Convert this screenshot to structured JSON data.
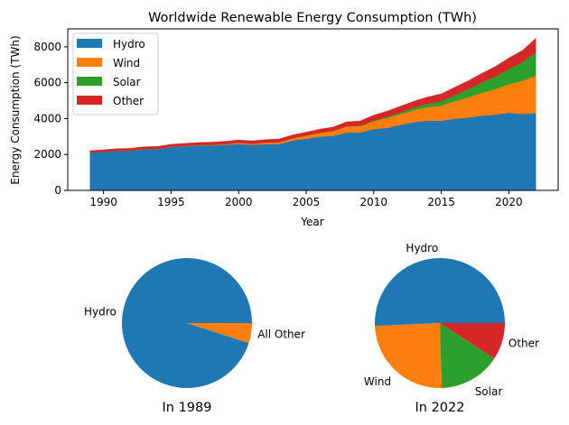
{
  "chart_data": [
    {
      "type": "area",
      "stacked": true,
      "title": "Worldwide Renewable Energy Consumption (TWh)",
      "xlabel": "Year",
      "ylabel": "Energy Consumption (TWh)",
      "xlim": [
        1987.35,
        2023.65
      ],
      "ylim": [
        0,
        9000
      ],
      "xticks": [
        1990,
        1995,
        2000,
        2005,
        2010,
        2015,
        2020
      ],
      "yticks": [
        0,
        2000,
        4000,
        6000,
        8000
      ],
      "legend_placement": "upper-left",
      "x": [
        1989,
        1990,
        1991,
        1992,
        1993,
        1994,
        1995,
        1996,
        1997,
        1998,
        1999,
        2000,
        2001,
        2002,
        2003,
        2004,
        2005,
        2006,
        2007,
        2008,
        2009,
        2010,
        2011,
        2012,
        2013,
        2014,
        2015,
        2016,
        2017,
        2018,
        2019,
        2020,
        2021,
        2022
      ],
      "series": [
        {
          "name": "Hydro",
          "color": "#1f77b4",
          "values": [
            2100,
            2150,
            2200,
            2210,
            2300,
            2310,
            2420,
            2460,
            2500,
            2510,
            2540,
            2590,
            2540,
            2580,
            2580,
            2780,
            2880,
            2990,
            3040,
            3220,
            3230,
            3420,
            3480,
            3660,
            3800,
            3880,
            3880,
            3990,
            4050,
            4170,
            4220,
            4330,
            4260,
            4300
          ]
        },
        {
          "name": "Wind",
          "color": "#ff7f0e",
          "values": [
            4,
            4,
            8,
            8,
            8,
            10,
            15,
            20,
            25,
            30,
            40,
            60,
            60,
            80,
            110,
            130,
            170,
            220,
            270,
            340,
            360,
            440,
            560,
            600,
            680,
            760,
            830,
            990,
            1140,
            1270,
            1420,
            1590,
            1850,
            2100
          ]
        },
        {
          "name": "Solar",
          "color": "#2ca02c",
          "values": [
            0,
            0,
            0,
            0,
            0,
            0,
            0,
            0,
            0,
            0,
            0,
            1,
            1,
            2,
            2,
            3,
            4,
            5,
            8,
            12,
            20,
            32,
            62,
            100,
            140,
            190,
            250,
            330,
            450,
            580,
            700,
            840,
            1030,
            1300
          ]
        },
        {
          "name": "Other",
          "color": "#d62728",
          "values": [
            110,
            115,
            120,
            125,
            125,
            130,
            135,
            140,
            145,
            150,
            155,
            160,
            165,
            170,
            175,
            180,
            190,
            200,
            210,
            250,
            260,
            300,
            320,
            340,
            360,
            380,
            420,
            440,
            470,
            500,
            560,
            620,
            660,
            780
          ]
        }
      ]
    },
    {
      "type": "pie",
      "title": "In 1989",
      "labels": [
        "Hydro",
        "All Other"
      ],
      "values": [
        95,
        5
      ],
      "colors": [
        "#1f77b4",
        "#ff7f0e"
      ]
    },
    {
      "type": "pie",
      "title": "In 2022",
      "labels": [
        "Hydro",
        "Wind",
        "Solar",
        "Other"
      ],
      "values": [
        4300,
        2100,
        1300,
        780
      ],
      "colors": [
        "#1f77b4",
        "#ff7f0e",
        "#2ca02c",
        "#d62728"
      ]
    }
  ]
}
